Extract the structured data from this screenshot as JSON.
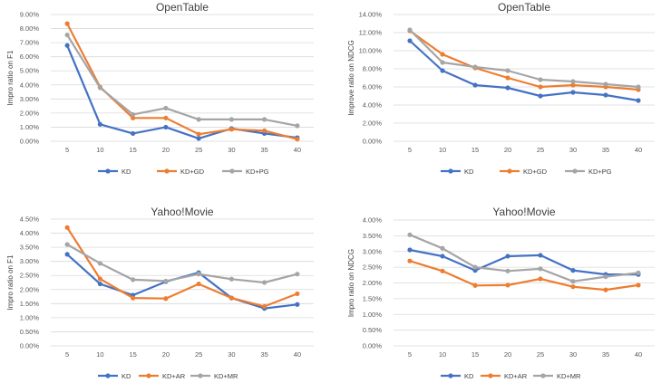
{
  "chart_data": [
    {
      "type": "line",
      "title": "OpenTable",
      "xlabel": "",
      "ylabel": "Impro ratio on F1",
      "x": [
        5,
        10,
        15,
        20,
        25,
        30,
        35,
        40
      ],
      "ylim": [
        0,
        9
      ],
      "ytick_labels": [
        "0.00%",
        "1.00%",
        "2.00%",
        "3.00%",
        "4.00%",
        "5.00%",
        "6.00%",
        "7.00%",
        "8.00%",
        "9.00%"
      ],
      "series": [
        {
          "name": "KD",
          "color": "#4472c4",
          "values": [
            6.8,
            1.2,
            0.55,
            1.0,
            0.2,
            0.9,
            0.55,
            0.25
          ]
        },
        {
          "name": "KD+GD",
          "color": "#ed7d31",
          "values": [
            8.35,
            3.85,
            1.65,
            1.65,
            0.5,
            0.85,
            0.75,
            0.15
          ]
        },
        {
          "name": "KD+PG",
          "color": "#a5a5a5",
          "values": [
            7.55,
            3.8,
            1.9,
            2.35,
            1.55,
            1.55,
            1.55,
            1.1
          ]
        }
      ]
    },
    {
      "type": "line",
      "title": "OpenTable",
      "xlabel": "",
      "ylabel": "Improve ratio on NDCG",
      "x": [
        5,
        10,
        15,
        20,
        25,
        30,
        35,
        40
      ],
      "ylim": [
        0,
        14
      ],
      "ytick_labels": [
        "0.00%",
        "2.00%",
        "4.00%",
        "6.00%",
        "8.00%",
        "10.00%",
        "12.00%",
        "14.00%"
      ],
      "series": [
        {
          "name": "KD",
          "color": "#4472c4",
          "values": [
            11.1,
            7.8,
            6.2,
            5.9,
            5.0,
            5.4,
            5.1,
            4.5
          ]
        },
        {
          "name": "KD+GD",
          "color": "#ed7d31",
          "values": [
            12.2,
            9.6,
            8.1,
            7.0,
            6.0,
            6.2,
            6.0,
            5.7
          ]
        },
        {
          "name": "KD+PG",
          "color": "#a5a5a5",
          "values": [
            12.3,
            8.7,
            8.2,
            7.8,
            6.8,
            6.6,
            6.3,
            6.0
          ]
        }
      ]
    },
    {
      "type": "line",
      "title": "Yahoo!Movie",
      "xlabel": "",
      "ylabel": "Impro ratio on F1",
      "x": [
        5,
        10,
        15,
        20,
        25,
        30,
        35,
        40
      ],
      "ylim": [
        0,
        4.5
      ],
      "ytick_labels": [
        "0.00%",
        "0.50%",
        "1.00%",
        "1.50%",
        "2.00%",
        "2.50%",
        "3.00%",
        "3.50%",
        "4.00%",
        "4.50%"
      ],
      "series": [
        {
          "name": "KD",
          "color": "#4472c4",
          "values": [
            3.25,
            2.2,
            1.8,
            2.28,
            2.6,
            1.7,
            1.33,
            1.47
          ]
        },
        {
          "name": "KD+AR",
          "color": "#ed7d31",
          "values": [
            4.2,
            2.38,
            1.7,
            1.68,
            2.2,
            1.7,
            1.4,
            1.85
          ]
        },
        {
          "name": "KD+MR",
          "color": "#a5a5a5",
          "values": [
            3.6,
            2.93,
            2.35,
            2.3,
            2.55,
            2.37,
            2.25,
            2.55
          ]
        }
      ]
    },
    {
      "type": "line",
      "title": "Yahoo!Movie",
      "xlabel": "",
      "ylabel": "Impro ratio on NDCG",
      "x": [
        5,
        10,
        15,
        20,
        25,
        30,
        35,
        40
      ],
      "ylim": [
        0,
        4
      ],
      "ytick_labels": [
        "0.00%",
        "0.50%",
        "1.00%",
        "1.50%",
        "2.00%",
        "2.50%",
        "3.00%",
        "3.50%",
        "4.00%"
      ],
      "series": [
        {
          "name": "KD",
          "color": "#4472c4",
          "values": [
            3.05,
            2.85,
            2.4,
            2.85,
            2.88,
            2.4,
            2.27,
            2.27
          ]
        },
        {
          "name": "KD+AR",
          "color": "#ed7d31",
          "values": [
            2.7,
            2.38,
            1.92,
            1.93,
            2.13,
            1.88,
            1.78,
            1.93
          ]
        },
        {
          "name": "KD+MR",
          "color": "#a5a5a5",
          "values": [
            3.53,
            3.1,
            2.5,
            2.38,
            2.45,
            2.05,
            2.2,
            2.32
          ]
        }
      ]
    }
  ]
}
